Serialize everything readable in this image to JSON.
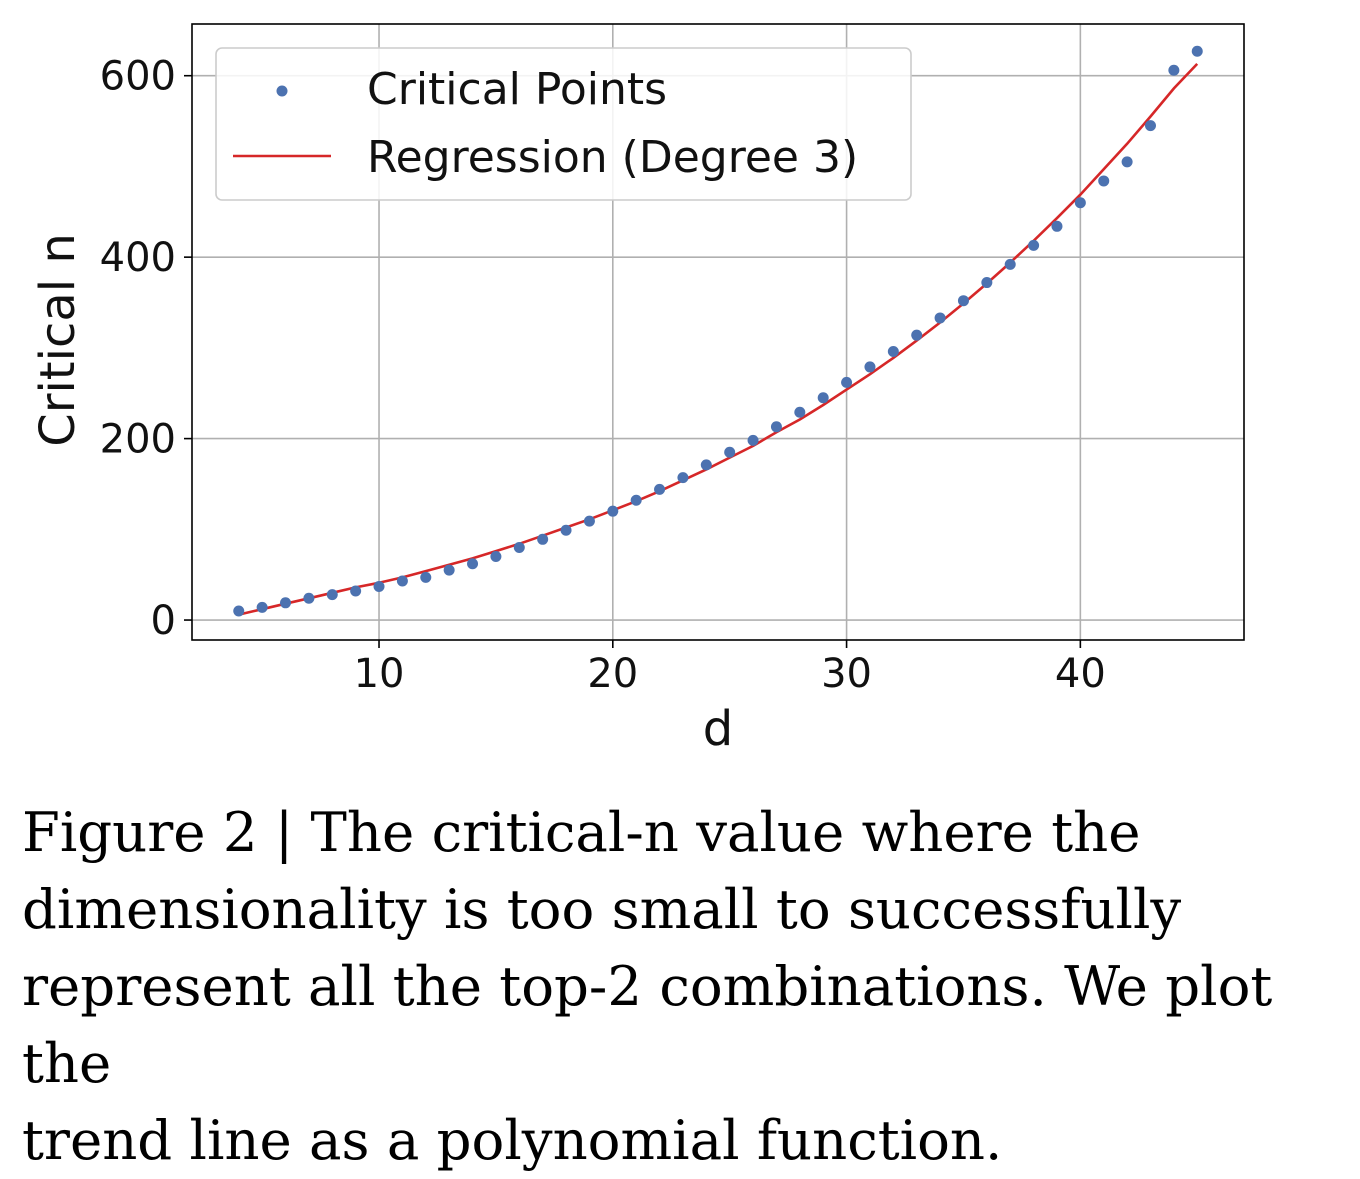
{
  "chart_data": {
    "type": "scatter",
    "xlabel": "d",
    "ylabel": "Critical n",
    "xlim": [
      2,
      47
    ],
    "ylim": [
      -22,
      657
    ],
    "xticks": [
      10,
      20,
      30,
      40
    ],
    "yticks": [
      0,
      200,
      400,
      600
    ],
    "grid": true,
    "legend_position": "top-left",
    "series": [
      {
        "name": "Critical Points",
        "kind": "scatter",
        "color": "#4c72b0",
        "x": [
          4,
          5,
          6,
          7,
          8,
          9,
          10,
          11,
          12,
          13,
          14,
          15,
          16,
          17,
          18,
          19,
          20,
          21,
          22,
          23,
          24,
          25,
          26,
          27,
          28,
          29,
          30,
          31,
          32,
          33,
          34,
          35,
          36,
          37,
          38,
          39,
          40,
          41,
          42,
          43,
          44,
          45
        ],
        "y": [
          10,
          14,
          19,
          24,
          28,
          32,
          37,
          43,
          47,
          55,
          62,
          70,
          80,
          89,
          99,
          109,
          120,
          132,
          144,
          157,
          171,
          185,
          198,
          213,
          229,
          245,
          262,
          279,
          296,
          314,
          333,
          352,
          372,
          392,
          413,
          434,
          460,
          484,
          505,
          545,
          606,
          627
        ]
      },
      {
        "name": "Regression (Degree 3)",
        "kind": "line",
        "color": "#d62728",
        "x": [
          4,
          5,
          6,
          7,
          8,
          9,
          10,
          11,
          12,
          13,
          14,
          15,
          16,
          17,
          18,
          19,
          20,
          21,
          22,
          23,
          24,
          25,
          26,
          27,
          28,
          29,
          30,
          31,
          32,
          33,
          34,
          35,
          36,
          37,
          38,
          39,
          40,
          41,
          42,
          43,
          44,
          45
        ],
        "y": [
          6,
          12,
          18,
          24,
          30,
          36,
          41,
          47,
          54,
          61,
          68,
          76,
          84,
          93,
          102,
          111,
          121,
          131,
          142,
          154,
          166,
          179,
          192,
          207,
          221,
          237,
          254,
          271,
          289,
          308,
          328,
          349,
          371,
          394,
          418,
          443,
          469,
          497,
          525,
          555,
          586,
          613
        ]
      }
    ]
  },
  "caption": {
    "lines": [
      "Figure 2 | The critical-n value where the",
      "dimensionality is too small to successfully",
      "represent all the top-2 combinations. We plot the",
      "trend line as a polynomial function."
    ]
  }
}
